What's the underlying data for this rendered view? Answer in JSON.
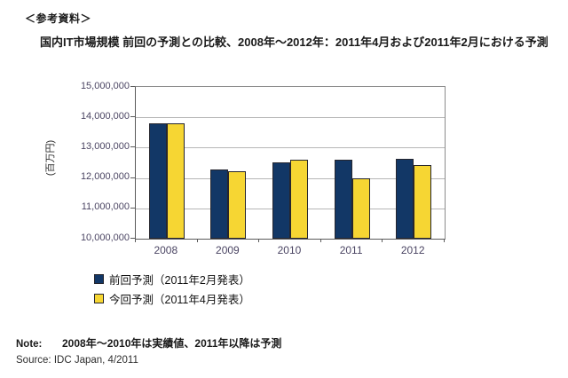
{
  "page": {
    "title": "＜参考資料＞",
    "subtitle": "国内IT市場規模 前回の予測との比較、2008年～2012年：2011年4月および2011年2月における予測",
    "note_label": "Note:",
    "note_text": "2008年～2010年は実績値、2011年以降は予測",
    "source_text": "Source: IDC Japan, 4/2011"
  },
  "chart_data": {
    "type": "bar",
    "title": "国内IT市場規模 前回の予測との比較、2008年～2012年：2011年4月および2011年2月における予測",
    "xlabel": "",
    "ylabel": "(百万円)",
    "ylim": [
      10000000,
      15000000
    ],
    "grid": true,
    "legend_position": "bottom-left",
    "categories": [
      "2008",
      "2009",
      "2010",
      "2011",
      "2012"
    ],
    "yticks": [
      {
        "value": 10000000,
        "label": "10,000,000"
      },
      {
        "value": 11000000,
        "label": "11,000,000"
      },
      {
        "value": 12000000,
        "label": "12,000,000"
      },
      {
        "value": 13000000,
        "label": "13,000,000"
      },
      {
        "value": 14000000,
        "label": "14,000,000"
      },
      {
        "value": 15000000,
        "label": "15,000,000"
      }
    ],
    "series": [
      {
        "id": "previous-forecast",
        "name": "前回予測（2011年2月発表）",
        "color": "#123766",
        "values": [
          13800000,
          12270000,
          12520000,
          12610000,
          12640000
        ]
      },
      {
        "id": "current-forecast",
        "name": "今回予測（2011年4月発表）",
        "color": "#F6D633",
        "values": [
          13800000,
          12220000,
          12590000,
          12000000,
          12440000
        ]
      }
    ]
  },
  "colors": {
    "navy": "#123766",
    "yellow": "#F6D633",
    "bar_border": "#26262e",
    "gridline": "#b6b6b6",
    "plot_border": "#8c8c8c",
    "axis_line": "#5a5a5a",
    "axis_text": "#4b4563",
    "text": "#1a1a1a"
  }
}
